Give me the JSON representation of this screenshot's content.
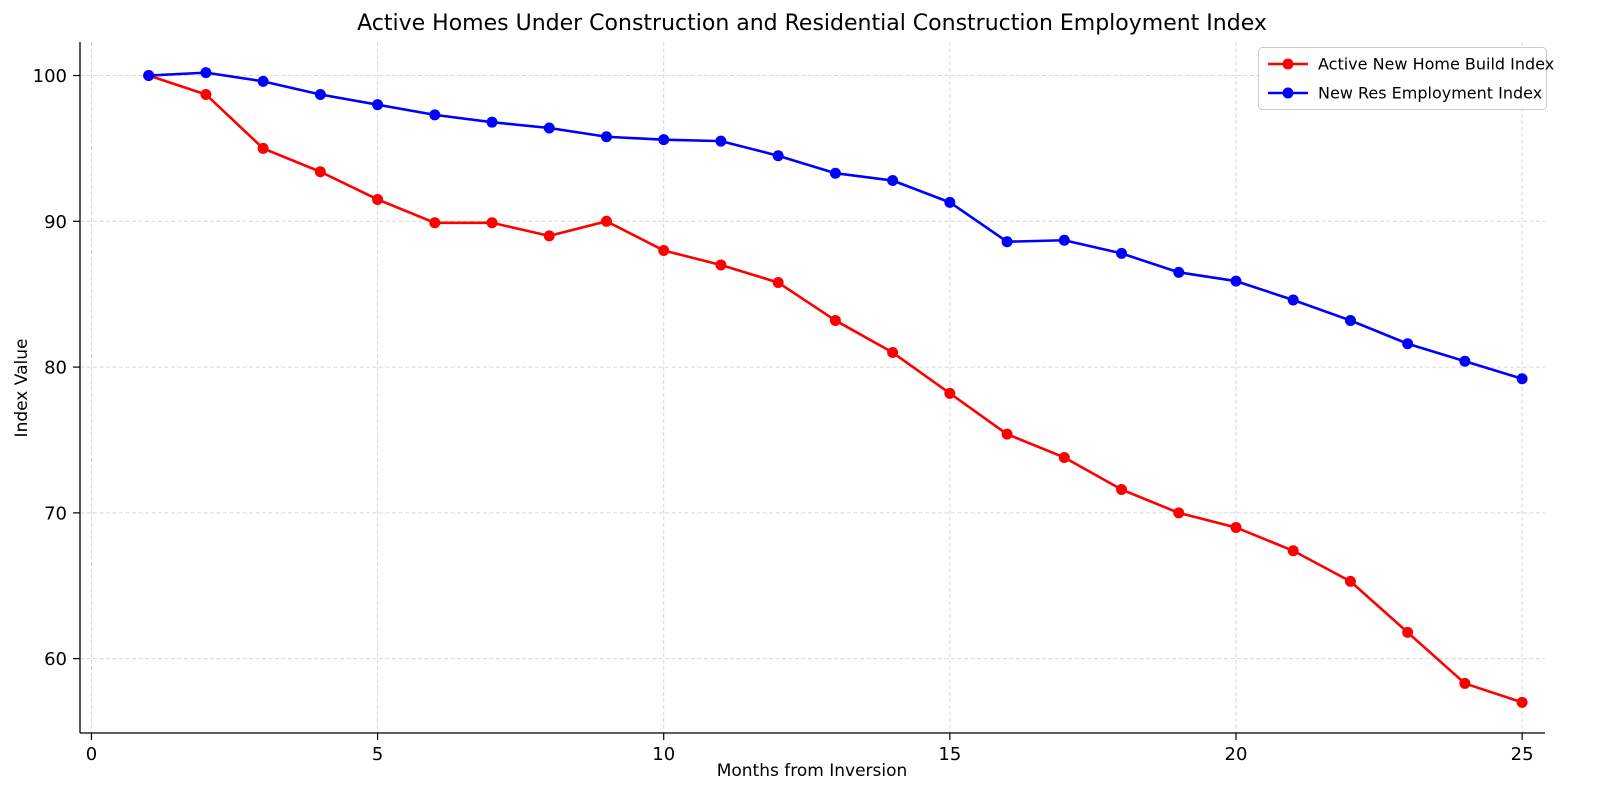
{
  "chart_data": {
    "type": "line",
    "title": "Active Homes Under Construction and Residential Construction Employment Index",
    "xlabel": "Months from Inversion",
    "ylabel": "Index Value",
    "x": [
      1,
      2,
      3,
      4,
      5,
      6,
      7,
      8,
      9,
      10,
      11,
      12,
      13,
      14,
      15,
      16,
      17,
      18,
      19,
      20,
      21,
      22,
      23,
      24,
      25
    ],
    "series": [
      {
        "name": "Active New Home Build Index",
        "color": "#ff0000",
        "marker": "circle",
        "values": [
          100.0,
          98.7,
          95.0,
          93.4,
          91.5,
          89.9,
          89.9,
          89.0,
          90.0,
          88.0,
          87.0,
          85.8,
          83.2,
          81.0,
          78.2,
          75.4,
          73.8,
          71.6,
          70.0,
          69.0,
          67.4,
          65.3,
          61.8,
          58.3,
          57.0
        ]
      },
      {
        "name": "New Res Employment Index",
        "color": "#0000ff",
        "marker": "circle",
        "values": [
          100.0,
          100.2,
          99.6,
          98.7,
          98.0,
          97.3,
          96.8,
          96.4,
          95.8,
          95.6,
          95.5,
          94.5,
          93.3,
          92.8,
          91.3,
          88.6,
          88.7,
          87.8,
          86.5,
          85.9,
          84.6,
          83.2,
          81.6,
          80.4,
          79.2
        ]
      }
    ],
    "xticks": [
      0,
      5,
      10,
      15,
      20,
      25
    ],
    "yticks": [
      60,
      70,
      80,
      90,
      100
    ],
    "xlim": [
      -0.2,
      25.4
    ],
    "ylim": [
      54.9,
      102.3
    ],
    "grid": true,
    "legend_position": "upper right"
  }
}
